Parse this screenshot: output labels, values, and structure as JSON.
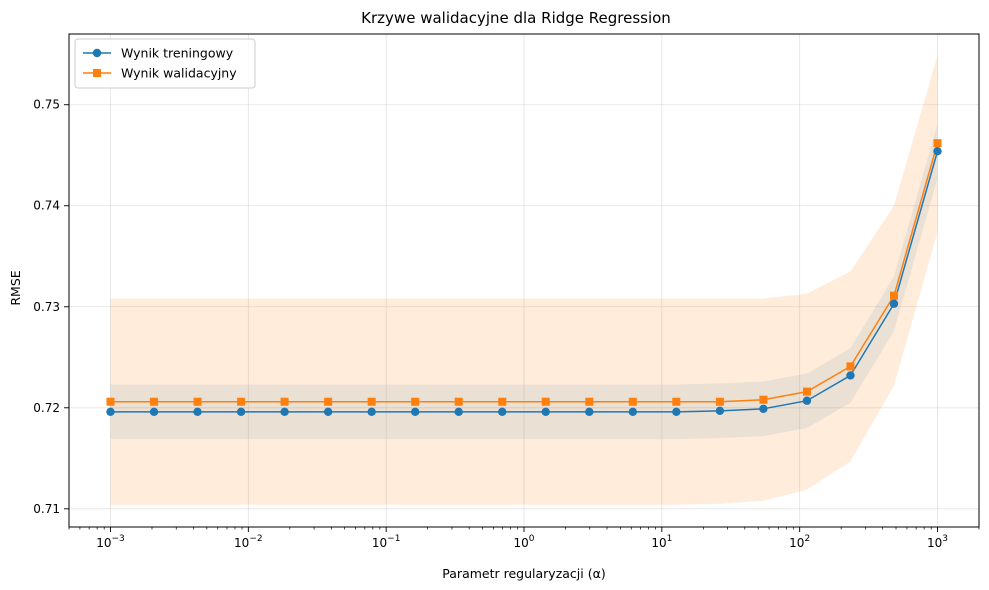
{
  "chart_data": {
    "type": "line",
    "title": "Krzywe walidacyjne dla Ridge Regression",
    "xlabel": "Parametr regularyzacji (α)",
    "ylabel": "RMSE",
    "xscale": "log",
    "xlim": [
      0.0005,
      2000
    ],
    "ylim": [
      0.7082,
      0.757
    ],
    "grid": true,
    "legend_position": "top-left",
    "x_ticks": [
      {
        "value": 0.001,
        "base": "10",
        "exp": "−3"
      },
      {
        "value": 0.01,
        "base": "10",
        "exp": "−2"
      },
      {
        "value": 0.1,
        "base": "10",
        "exp": "−1"
      },
      {
        "value": 1,
        "base": "10",
        "exp": "0"
      },
      {
        "value": 10,
        "base": "10",
        "exp": "1"
      },
      {
        "value": 100,
        "base": "10",
        "exp": "2"
      },
      {
        "value": 1000,
        "base": "10",
        "exp": "3"
      }
    ],
    "y_ticks": [
      {
        "value": 0.71,
        "label": "0.71"
      },
      {
        "value": 0.72,
        "label": "0.72"
      },
      {
        "value": 0.73,
        "label": "0.73"
      },
      {
        "value": 0.74,
        "label": "0.74"
      },
      {
        "value": 0.75,
        "label": "0.75"
      }
    ],
    "x": [
      0.001,
      0.00207,
      0.00428,
      0.00886,
      0.01833,
      0.03793,
      0.07848,
      0.1624,
      0.336,
      0.6952,
      1.438,
      2.976,
      6.158,
      12.74,
      26.37,
      54.56,
      112.9,
      233.6,
      483.3,
      1000
    ],
    "series": [
      {
        "name": "Wynik treningowy",
        "color": "#1f77b4",
        "marker": "circle",
        "values": [
          0.7196,
          0.7196,
          0.7196,
          0.7196,
          0.7196,
          0.7196,
          0.7196,
          0.7196,
          0.7196,
          0.7196,
          0.7196,
          0.7196,
          0.7196,
          0.7196,
          0.7197,
          0.7199,
          0.7207,
          0.7232,
          0.7303,
          0.7454
        ],
        "band_lower": [
          0.7169,
          0.7169,
          0.7169,
          0.7169,
          0.7169,
          0.7169,
          0.7169,
          0.7169,
          0.7169,
          0.7169,
          0.7169,
          0.7169,
          0.7169,
          0.7169,
          0.717,
          0.7172,
          0.718,
          0.7205,
          0.7276,
          0.7427
        ],
        "band_upper": [
          0.7223,
          0.7223,
          0.7223,
          0.7223,
          0.7223,
          0.7223,
          0.7223,
          0.7223,
          0.7223,
          0.7223,
          0.7223,
          0.7223,
          0.7223,
          0.7223,
          0.7224,
          0.7226,
          0.7234,
          0.7259,
          0.733,
          0.7481
        ],
        "band_color": "#1f77b4",
        "band_opacity": 0.1
      },
      {
        "name": "Wynik walidacyjny",
        "color": "#ff7f0e",
        "marker": "square",
        "values": [
          0.7206,
          0.7206,
          0.7206,
          0.7206,
          0.7206,
          0.7206,
          0.7206,
          0.7206,
          0.7206,
          0.7206,
          0.7206,
          0.7206,
          0.7206,
          0.7206,
          0.7206,
          0.7208,
          0.7216,
          0.7241,
          0.7311,
          0.7462
        ],
        "band_lower": [
          0.7104,
          0.7104,
          0.7104,
          0.7104,
          0.7104,
          0.7104,
          0.7104,
          0.7104,
          0.7104,
          0.7104,
          0.7104,
          0.7104,
          0.7104,
          0.7104,
          0.7105,
          0.7108,
          0.7119,
          0.7147,
          0.7222,
          0.7374
        ],
        "band_upper": [
          0.7308,
          0.7308,
          0.7308,
          0.7308,
          0.7308,
          0.7308,
          0.7308,
          0.7308,
          0.7308,
          0.7308,
          0.7308,
          0.7308,
          0.7308,
          0.7308,
          0.7308,
          0.7308,
          0.7313,
          0.7335,
          0.74,
          0.7549
        ],
        "band_color": "#ff7f0e",
        "band_opacity": 0.15
      }
    ]
  }
}
